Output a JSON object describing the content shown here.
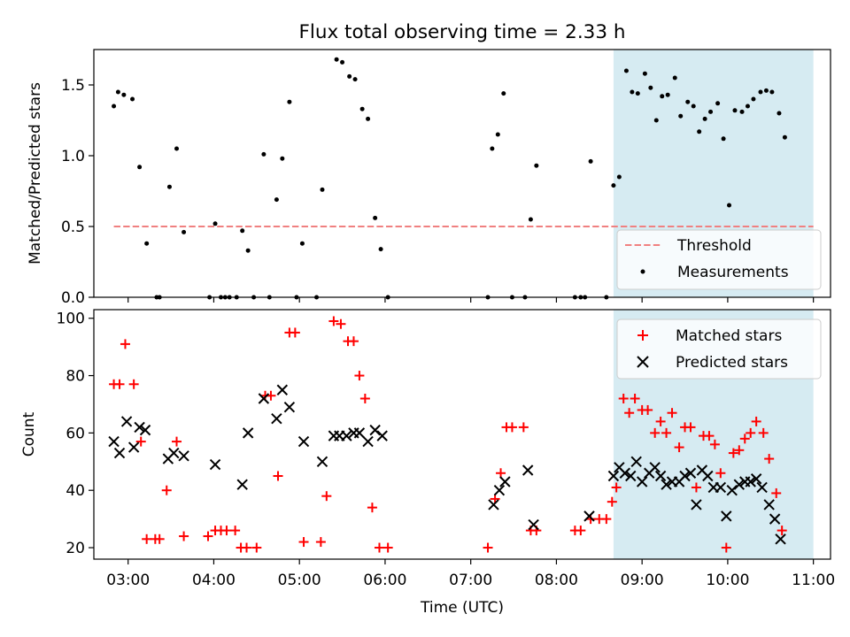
{
  "figure": {
    "title": "Flux total observing time = 2.33 h",
    "xlabel": "Time (UTC)"
  },
  "colors": {
    "threshold": "#f08080",
    "measurement": "#000000",
    "matched": "#ff0000",
    "predicted": "#000000",
    "shade": "#add8e6"
  },
  "chart_data": [
    {
      "type": "scatter",
      "ylabel": "Matched/Predicted stars",
      "xlim": [
        "02:36",
        "11:12"
      ],
      "ylim": [
        0,
        1.75
      ],
      "yticks": [
        0.0,
        0.5,
        1.0,
        1.5
      ],
      "ytick_labels": [
        "0.0",
        "0.5",
        "1.0",
        "1.5"
      ],
      "legend_position": "bottom-right",
      "shaded_span": [
        "08:40",
        "11:00"
      ],
      "threshold": {
        "name": "Threshold",
        "y": 0.5,
        "x_range": [
          "02:50",
          "11:00"
        ]
      },
      "series": [
        {
          "name": "Measurements",
          "points": [
            [
              "02:50",
              1.35
            ],
            [
              "02:53",
              1.45
            ],
            [
              "02:57",
              1.43
            ],
            [
              "03:03",
              1.4
            ],
            [
              "03:08",
              0.92
            ],
            [
              "03:13",
              0.38
            ],
            [
              "03:20",
              0.0
            ],
            [
              "03:22",
              0.0
            ],
            [
              "03:29",
              0.78
            ],
            [
              "03:34",
              1.05
            ],
            [
              "03:39",
              0.46
            ],
            [
              "03:57",
              0.0
            ],
            [
              "04:01",
              0.52
            ],
            [
              "04:05",
              0.0
            ],
            [
              "04:08",
              0.0
            ],
            [
              "04:11",
              0.0
            ],
            [
              "04:16",
              0.0
            ],
            [
              "04:20",
              0.47
            ],
            [
              "04:24",
              0.33
            ],
            [
              "04:28",
              0.0
            ],
            [
              "04:35",
              1.01
            ],
            [
              "04:39",
              0.0
            ],
            [
              "04:44",
              0.69
            ],
            [
              "04:48",
              0.98
            ],
            [
              "04:53",
              1.38
            ],
            [
              "04:58",
              0.0
            ],
            [
              "05:02",
              0.38
            ],
            [
              "05:12",
              0.0
            ],
            [
              "05:16",
              0.76
            ],
            [
              "05:26",
              1.68
            ],
            [
              "05:30",
              1.66
            ],
            [
              "05:35",
              1.56
            ],
            [
              "05:39",
              1.54
            ],
            [
              "05:44",
              1.33
            ],
            [
              "05:48",
              1.26
            ],
            [
              "05:53",
              0.56
            ],
            [
              "05:57",
              0.34
            ],
            [
              "06:02",
              0.0
            ],
            [
              "07:12",
              0.0
            ],
            [
              "07:15",
              1.05
            ],
            [
              "07:19",
              1.15
            ],
            [
              "07:23",
              1.44
            ],
            [
              "07:29",
              0.0
            ],
            [
              "07:38",
              0.0
            ],
            [
              "07:42",
              0.55
            ],
            [
              "07:46",
              0.93
            ],
            [
              "08:13",
              0.0
            ],
            [
              "08:17",
              0.0
            ],
            [
              "08:20",
              0.0
            ],
            [
              "08:24",
              0.96
            ],
            [
              "08:35",
              0.0
            ],
            [
              "08:40",
              0.79
            ],
            [
              "08:44",
              0.85
            ],
            [
              "08:49",
              1.6
            ],
            [
              "08:53",
              1.45
            ],
            [
              "08:57",
              1.44
            ],
            [
              "09:02",
              1.58
            ],
            [
              "09:06",
              1.48
            ],
            [
              "09:10",
              1.25
            ],
            [
              "09:14",
              1.42
            ],
            [
              "09:18",
              1.43
            ],
            [
              "09:23",
              1.55
            ],
            [
              "09:27",
              1.28
            ],
            [
              "09:32",
              1.38
            ],
            [
              "09:36",
              1.35
            ],
            [
              "09:40",
              1.17
            ],
            [
              "09:44",
              1.26
            ],
            [
              "09:48",
              1.31
            ],
            [
              "09:53",
              1.37
            ],
            [
              "09:57",
              1.12
            ],
            [
              "10:01",
              0.65
            ],
            [
              "10:05",
              1.32
            ],
            [
              "10:10",
              1.31
            ],
            [
              "10:14",
              1.35
            ],
            [
              "10:18",
              1.4
            ],
            [
              "10:23",
              1.45
            ],
            [
              "10:27",
              1.46
            ],
            [
              "10:31",
              1.45
            ],
            [
              "10:36",
              1.3
            ],
            [
              "10:40",
              1.13
            ]
          ]
        }
      ]
    },
    {
      "type": "scatter",
      "ylabel": "Count",
      "xlim": [
        "02:36",
        "11:12"
      ],
      "ylim": [
        16,
        103
      ],
      "yticks": [
        20,
        40,
        60,
        80,
        100
      ],
      "ytick_labels": [
        "20",
        "40",
        "60",
        "80",
        "100"
      ],
      "xticks": [
        "03:00",
        "04:00",
        "05:00",
        "06:00",
        "07:00",
        "08:00",
        "09:00",
        "10:00",
        "11:00"
      ],
      "xtick_labels": [
        "03:00",
        "04:00",
        "05:00",
        "06:00",
        "07:00",
        "08:00",
        "09:00",
        "10:00",
        "11:00"
      ],
      "legend_position": "top-right",
      "shaded_span": [
        "08:40",
        "11:00"
      ],
      "series": [
        {
          "name": "Matched stars",
          "marker": "+",
          "points": [
            [
              "02:50",
              77
            ],
            [
              "02:54",
              77
            ],
            [
              "02:58",
              91
            ],
            [
              "03:04",
              77
            ],
            [
              "03:09",
              57
            ],
            [
              "03:13",
              23
            ],
            [
              "03:19",
              23
            ],
            [
              "03:22",
              23
            ],
            [
              "03:27",
              40
            ],
            [
              "03:34",
              57
            ],
            [
              "03:39",
              24
            ],
            [
              "03:56",
              24
            ],
            [
              "04:01",
              26
            ],
            [
              "04:05",
              26
            ],
            [
              "04:09",
              26
            ],
            [
              "04:15",
              26
            ],
            [
              "04:19",
              20
            ],
            [
              "04:23",
              20
            ],
            [
              "04:30",
              20
            ],
            [
              "04:36",
              73
            ],
            [
              "04:40",
              73
            ],
            [
              "04:45",
              45
            ],
            [
              "04:53",
              95
            ],
            [
              "04:57",
              95
            ],
            [
              "05:03",
              22
            ],
            [
              "05:15",
              22
            ],
            [
              "05:19",
              38
            ],
            [
              "05:24",
              99
            ],
            [
              "05:29",
              98
            ],
            [
              "05:34",
              92
            ],
            [
              "05:38",
              92
            ],
            [
              "05:42",
              80
            ],
            [
              "05:46",
              72
            ],
            [
              "05:51",
              34
            ],
            [
              "05:56",
              20
            ],
            [
              "06:02",
              20
            ],
            [
              "07:12",
              20
            ],
            [
              "07:17",
              37
            ],
            [
              "07:21",
              46
            ],
            [
              "07:25",
              62
            ],
            [
              "07:29",
              62
            ],
            [
              "07:37",
              62
            ],
            [
              "07:42",
              26
            ],
            [
              "07:46",
              26
            ],
            [
              "08:13",
              26
            ],
            [
              "08:17",
              26
            ],
            [
              "08:24",
              30
            ],
            [
              "08:30",
              30
            ],
            [
              "08:35",
              30
            ],
            [
              "08:39",
              36
            ],
            [
              "08:42",
              41
            ],
            [
              "08:47",
              72
            ],
            [
              "08:51",
              67
            ],
            [
              "08:55",
              72
            ],
            [
              "09:00",
              68
            ],
            [
              "09:04",
              68
            ],
            [
              "09:09",
              60
            ],
            [
              "09:13",
              64
            ],
            [
              "09:17",
              60
            ],
            [
              "09:21",
              67
            ],
            [
              "09:26",
              55
            ],
            [
              "09:30",
              62
            ],
            [
              "09:34",
              62
            ],
            [
              "09:38",
              41
            ],
            [
              "09:43",
              59
            ],
            [
              "09:47",
              59
            ],
            [
              "09:51",
              56
            ],
            [
              "09:55",
              46
            ],
            [
              "09:59",
              20
            ],
            [
              "10:04",
              53
            ],
            [
              "10:08",
              54
            ],
            [
              "10:12",
              58
            ],
            [
              "10:16",
              60
            ],
            [
              "10:20",
              64
            ],
            [
              "10:25",
              60
            ],
            [
              "10:29",
              51
            ],
            [
              "10:34",
              39
            ],
            [
              "10:38",
              26
            ]
          ]
        },
        {
          "name": "Predicted stars",
          "marker": "x",
          "points": [
            [
              "02:50",
              57
            ],
            [
              "02:54",
              53
            ],
            [
              "02:59",
              64
            ],
            [
              "03:04",
              55
            ],
            [
              "03:08",
              62
            ],
            [
              "03:12",
              61
            ],
            [
              "03:28",
              51
            ],
            [
              "03:32",
              53
            ],
            [
              "03:39",
              52
            ],
            [
              "04:01",
              49
            ],
            [
              "04:20",
              42
            ],
            [
              "04:24",
              60
            ],
            [
              "04:35",
              72
            ],
            [
              "04:44",
              65
            ],
            [
              "04:48",
              75
            ],
            [
              "04:53",
              69
            ],
            [
              "05:03",
              57
            ],
            [
              "05:16",
              50
            ],
            [
              "05:24",
              59
            ],
            [
              "05:28",
              59
            ],
            [
              "05:33",
              59
            ],
            [
              "05:38",
              60
            ],
            [
              "05:42",
              60
            ],
            [
              "05:48",
              57
            ],
            [
              "05:53",
              61
            ],
            [
              "05:58",
              59
            ],
            [
              "07:16",
              35
            ],
            [
              "07:20",
              40
            ],
            [
              "07:24",
              43
            ],
            [
              "07:40",
              47
            ],
            [
              "07:44",
              28
            ],
            [
              "08:23",
              31
            ],
            [
              "08:40",
              45
            ],
            [
              "08:44",
              48
            ],
            [
              "08:48",
              46
            ],
            [
              "08:52",
              45
            ],
            [
              "08:56",
              50
            ],
            [
              "09:00",
              43
            ],
            [
              "09:05",
              46
            ],
            [
              "09:09",
              48
            ],
            [
              "09:13",
              45
            ],
            [
              "09:17",
              42
            ],
            [
              "09:21",
              43
            ],
            [
              "09:26",
              43
            ],
            [
              "09:30",
              45
            ],
            [
              "09:34",
              46
            ],
            [
              "09:38",
              35
            ],
            [
              "09:42",
              47
            ],
            [
              "09:46",
              45
            ],
            [
              "09:50",
              41
            ],
            [
              "09:55",
              41
            ],
            [
              "09:59",
              31
            ],
            [
              "10:03",
              40
            ],
            [
              "10:08",
              42
            ],
            [
              "10:12",
              43
            ],
            [
              "10:16",
              43
            ],
            [
              "10:20",
              44
            ],
            [
              "10:24",
              41
            ],
            [
              "10:29",
              35
            ],
            [
              "10:33",
              30
            ],
            [
              "10:37",
              23
            ]
          ]
        }
      ]
    }
  ]
}
